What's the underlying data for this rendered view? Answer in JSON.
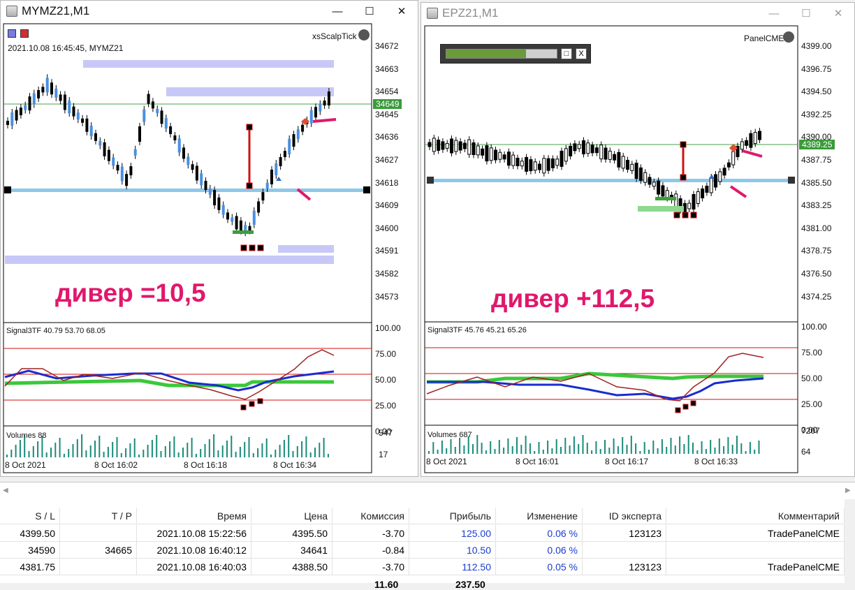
{
  "left": {
    "title": "MYMZ21,M1",
    "info": "2021.10.08 16:45:45, MYMZ21",
    "ea": "xsScalpTick",
    "price_labels": [
      "34672",
      "34663",
      "34654",
      "34645",
      "34636",
      "34627",
      "34618",
      "34609",
      "34600",
      "34591",
      "34582",
      "34573"
    ],
    "current_price": "34649",
    "diver": "дивер =10,5",
    "ind_label": "Signal3TF 40.79 53.70 68.05",
    "ind_levels": [
      "100.00",
      "75.00",
      "50.00",
      "25.00",
      "0.00"
    ],
    "vol_label": "Volumes 88",
    "vol_levels": [
      "547",
      "17"
    ],
    "time_labels": [
      "8 Oct 2021",
      "8 Oct 16:02",
      "8 Oct 16:18",
      "8 Oct 16:34"
    ]
  },
  "right": {
    "title": "EPZ21,M1",
    "ea": "PanelCME",
    "price_labels": [
      "4399.00",
      "4396.75",
      "4394.50",
      "4392.25",
      "4390.00",
      "4387.75",
      "4385.50",
      "4383.25",
      "4381.00",
      "4378.75",
      "4376.50",
      "4374.25"
    ],
    "current_price": "4389.25",
    "diver": "дивер +112,5",
    "ind_label": "Signal3TF 45.76 45.21 65.26",
    "ind_levels": [
      "100.00",
      "75.00",
      "50.00",
      "25.00",
      "0.00"
    ],
    "vol_label": "Volumes 687",
    "vol_levels": [
      "7207",
      "64"
    ],
    "time_labels": [
      "8 Oct 2021",
      "8 Oct 16:01",
      "8 Oct 16:17",
      "8 Oct 16:33"
    ],
    "panel_close": "X"
  },
  "table": {
    "headers": [
      "S / L",
      "T / P",
      "Время",
      "Цена",
      "Комиссия",
      "Прибыль",
      "Изменение",
      "ID эксперта",
      "Комментарий"
    ],
    "rows": [
      [
        "4399.50",
        "",
        "2021.10.08 15:22:56",
        "4395.50",
        "-3.70",
        "125.00",
        "0.06 %",
        "123123",
        "TradePanelCME"
      ],
      [
        "34590",
        "34665",
        "2021.10.08 16:40:12",
        "34641",
        "-0.84",
        "10.50",
        "0.06 %",
        "",
        ""
      ],
      [
        "4381.75",
        "",
        "2021.10.08 16:40:03",
        "4388.50",
        "-3.70",
        "112.50",
        "0.05 %",
        "123123",
        "TradePanelCME"
      ]
    ],
    "footer": [
      "11.60",
      "237.50"
    ]
  },
  "colors": {
    "accent": "#e0186c",
    "up": "#4a90e2",
    "down": "#000000",
    "level": "#8ec8e8",
    "zone": "#c8c8f8"
  }
}
